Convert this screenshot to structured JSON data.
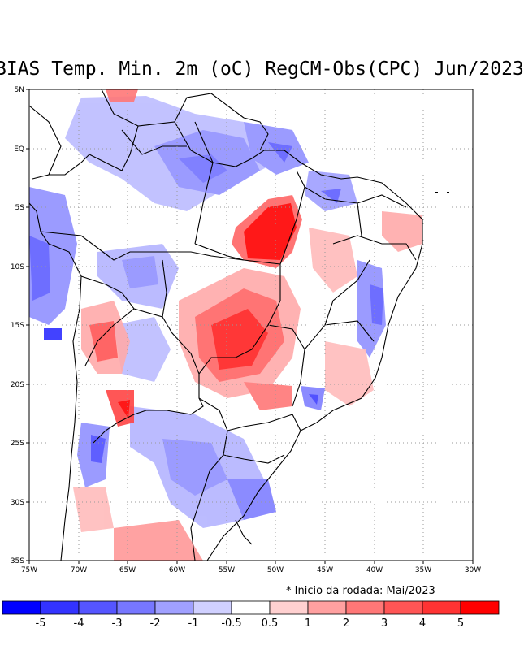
{
  "title": "BIAS Temp. Min. 2m (oC) RegCM-Obs(CPC) Jun/2023",
  "note": "* Inicio da rodada: Mai/2023",
  "map": {
    "lon_range": [
      -75,
      -30
    ],
    "lat_range": [
      -35,
      5
    ],
    "lon_labels": [
      "75W",
      "70W",
      "65W",
      "60W",
      "55W",
      "50W",
      "45W",
      "40W",
      "35W",
      "30W"
    ],
    "lat_labels": [
      "5N",
      "EQ",
      "5S",
      "10S",
      "15S",
      "20S",
      "25S",
      "30S",
      "35S"
    ]
  },
  "legend": {
    "colors": [
      "#0000ff",
      "#3333ff",
      "#5555ff",
      "#7777ff",
      "#a0a0ff",
      "#d0d0ff",
      "#ffffff",
      "#ffd0d0",
      "#ffa0a0",
      "#ff7777",
      "#ff5555",
      "#ff3333",
      "#ff0000"
    ],
    "labels": [
      "-5",
      "-4",
      "-3",
      "-2",
      "-1",
      "-0.5",
      "0.5",
      "1",
      "2",
      "3",
      "4",
      "5"
    ]
  }
}
